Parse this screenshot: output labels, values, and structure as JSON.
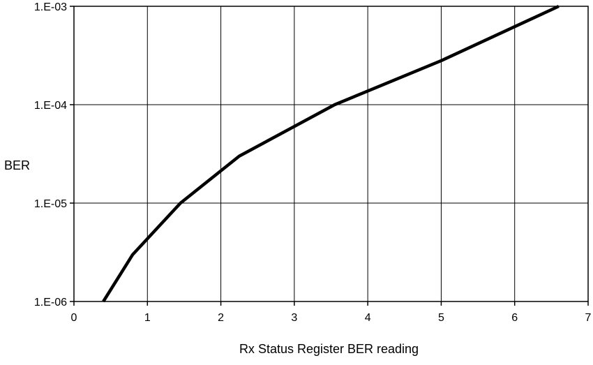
{
  "chart_data": {
    "type": "line",
    "title": "",
    "xlabel": "Rx Status Register BER reading",
    "ylabel": "BER",
    "xlim": [
      0,
      7
    ],
    "ylim": [
      1e-06,
      0.001
    ],
    "y_scale": "log",
    "grid": true,
    "legend": "none",
    "x_ticks": [
      {
        "value": 0,
        "label": "0"
      },
      {
        "value": 1,
        "label": "1"
      },
      {
        "value": 2,
        "label": "2"
      },
      {
        "value": 3,
        "label": "3"
      },
      {
        "value": 4,
        "label": "4"
      },
      {
        "value": 5,
        "label": "5"
      },
      {
        "value": 6,
        "label": "6"
      },
      {
        "value": 7,
        "label": "7"
      }
    ],
    "y_ticks": [
      {
        "value": 1e-06,
        "label": "1.E-06"
      },
      {
        "value": 1e-05,
        "label": "1.E-05"
      },
      {
        "value": 0.0001,
        "label": "1.E-04"
      },
      {
        "value": 0.001,
        "label": "1.E-03"
      }
    ],
    "series": [
      {
        "color": "#000000",
        "points": [
          {
            "x": 0.4,
            "y": 1e-06
          },
          {
            "x": 0.8,
            "y": 3e-06
          },
          {
            "x": 1.45,
            "y": 1e-05
          },
          {
            "x": 2.25,
            "y": 3e-05
          },
          {
            "x": 3.55,
            "y": 0.0001
          },
          {
            "x": 5.0,
            "y": 0.00028
          },
          {
            "x": 6.6,
            "y": 0.001
          }
        ]
      }
    ]
  }
}
